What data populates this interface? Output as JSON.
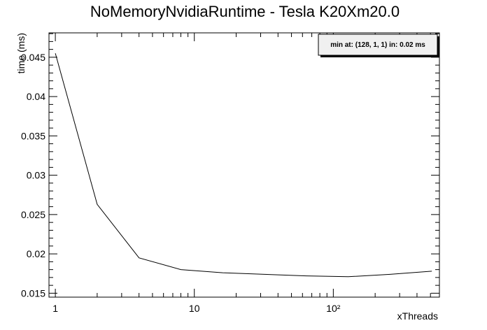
{
  "chart_data": {
    "type": "line",
    "title": "NoMemoryNvidiaRuntime - Tesla K20Xm20.0",
    "xlabel": "xThreads",
    "ylabel": "time (ms)",
    "x_scale": "log",
    "xlim": [
      0.9,
      580
    ],
    "ylim": [
      0.0145,
      0.0481
    ],
    "x_tick_labels": [
      "1",
      "10",
      "10²"
    ],
    "y_ticks": [
      0.015,
      0.02,
      0.025,
      0.03,
      0.035,
      0.04,
      0.045
    ],
    "y_tick_labels": [
      "0.015",
      "0.02",
      "0.025",
      "0.03",
      "0.035",
      "0.04",
      "0.045"
    ],
    "grid": false,
    "legend": {
      "text": "min at: (128, 1, 1) in: 0.02 ms",
      "placement": "top-right"
    },
    "series": [
      {
        "x": [
          1,
          2,
          4,
          8,
          16,
          32,
          64,
          128,
          256,
          512
        ],
        "y": [
          0.0455,
          0.0263,
          0.0195,
          0.018,
          0.0176,
          0.0174,
          0.0172,
          0.0171,
          0.0174,
          0.0178
        ]
      }
    ]
  }
}
